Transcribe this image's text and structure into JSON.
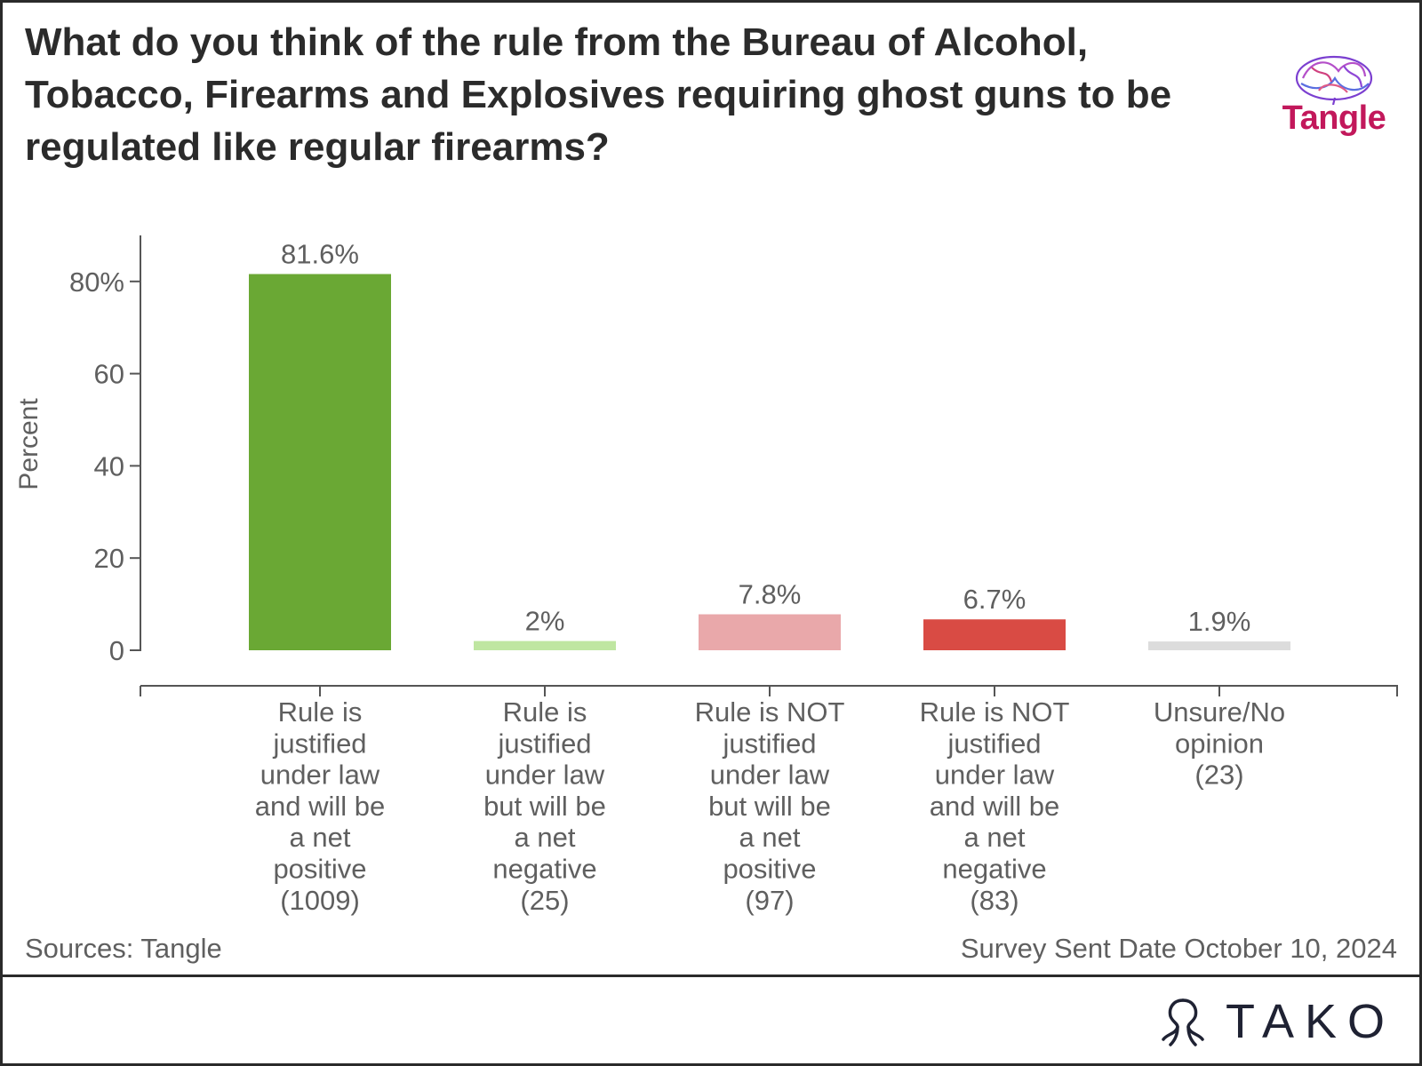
{
  "title": "What do you think of the rule from the Bureau of Alcohol, Tobacco, Firearms and Explosives requiring ghost guns to be regulated like regular firearms?",
  "logo": {
    "text": "Tangle",
    "icon": "brain-icon"
  },
  "footer": {
    "source": "Sources: Tangle",
    "date": "Survey Sent Date October 10, 2024",
    "brand": "TAKO",
    "brand_icon": "octopus-icon"
  },
  "chart_data": {
    "type": "bar",
    "ylabel": "Percent",
    "ylim": [
      0,
      90
    ],
    "yticks": [
      {
        "value": 0,
        "label": "0"
      },
      {
        "value": 20,
        "label": "20"
      },
      {
        "value": 40,
        "label": "40"
      },
      {
        "value": 60,
        "label": "60"
      },
      {
        "value": 80,
        "label": "80%"
      }
    ],
    "grid": false,
    "categories": [
      [
        "Rule is",
        "justified",
        "under law",
        "and will be",
        "a net",
        "positive",
        "(1009)"
      ],
      [
        "Rule is",
        "justified",
        "under law",
        "but will be",
        "a net",
        "negative",
        "(25)"
      ],
      [
        "Rule is NOT",
        "justified",
        "under law",
        "but will be",
        "a net",
        "positive",
        "(97)"
      ],
      [
        "Rule is NOT",
        "justified",
        "under law",
        "and will be",
        "a net",
        "negative",
        "(83)"
      ],
      [
        "Unsure/No",
        "opinion",
        "(23)"
      ]
    ],
    "values": [
      81.6,
      2,
      7.8,
      6.7,
      1.9
    ],
    "value_labels": [
      "81.6%",
      "2%",
      "7.8%",
      "6.7%",
      "1.9%"
    ],
    "colors": [
      "#6aa834",
      "#bfe6a1",
      "#e9a8aa",
      "#d94b44",
      "#dcdcdc"
    ]
  }
}
